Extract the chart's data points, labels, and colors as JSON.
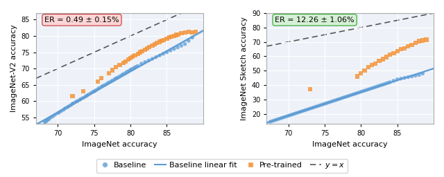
{
  "left_title": "ER = 0.49 ± 0.15%",
  "right_title": "ER = 12.26 ± 1.06%",
  "left_ylabel": "ImageNet-V2 accuracy",
  "right_ylabel": "ImageNet Sketch accuracy",
  "xlabel": "ImageNet accuracy",
  "left_xlim": [
    67,
    90
  ],
  "left_ylim": [
    53,
    87
  ],
  "right_xlim": [
    67,
    90
  ],
  "right_ylim": [
    13,
    90
  ],
  "left_xticks": [
    70,
    75,
    80,
    85
  ],
  "right_xticks": [
    70,
    75,
    80,
    85
  ],
  "left_yticks": [
    55,
    60,
    65,
    70,
    75,
    80,
    85
  ],
  "right_yticks": [
    20,
    30,
    40,
    50,
    60,
    70,
    80,
    90
  ],
  "baseline_color": "#5b9bd5",
  "pretrained_color": "#f4943a",
  "fit_color": "#5b9bd5",
  "yequx_color": "#555555",
  "left_box_color": "#fcd5d5",
  "right_box_color": "#d5f0d5",
  "left_box_edge": "#cc4444",
  "right_box_edge": "#44aa44",
  "bg_color": "#eef2f8",
  "left_baseline_x": [
    68.2,
    68.4,
    68.6,
    68.8,
    69.0,
    69.3,
    69.6,
    70.0,
    70.2,
    70.5,
    70.8,
    71.0,
    71.3,
    71.5,
    71.8,
    72.0,
    72.2,
    72.5,
    72.7,
    73.0,
    73.2,
    73.5,
    73.8,
    74.0,
    74.2,
    74.5,
    74.8,
    75.0,
    75.2,
    75.5,
    75.7,
    76.0,
    76.2,
    76.5,
    76.8,
    77.0,
    77.3,
    77.5,
    77.8,
    78.0,
    78.2,
    78.5,
    78.8,
    79.0,
    79.3,
    79.5,
    79.8,
    80.0,
    80.2,
    80.5,
    80.7,
    81.0,
    81.5,
    82.0,
    82.5,
    83.0,
    83.5,
    84.0,
    84.5,
    85.0,
    85.5,
    86.0,
    86.5,
    87.0,
    87.5,
    88.0,
    88.5
  ],
  "left_baseline_y": [
    53.5,
    53.8,
    54.2,
    54.5,
    55.0,
    55.3,
    55.8,
    56.3,
    56.6,
    57.0,
    57.4,
    57.8,
    58.1,
    58.4,
    58.8,
    59.2,
    59.4,
    59.8,
    60.0,
    60.4,
    60.7,
    61.0,
    61.4,
    61.7,
    62.0,
    62.4,
    62.8,
    63.0,
    63.3,
    63.7,
    64.0,
    64.4,
    64.7,
    65.0,
    65.4,
    65.7,
    66.0,
    66.3,
    66.7,
    67.0,
    67.2,
    67.6,
    68.0,
    68.3,
    68.6,
    69.0,
    69.3,
    69.6,
    69.9,
    70.2,
    70.5,
    70.8,
    71.5,
    72.0,
    72.5,
    73.0,
    73.5,
    74.0,
    74.5,
    75.0,
    75.5,
    76.0,
    76.5,
    77.0,
    77.5,
    78.5,
    79.5
  ],
  "left_pretrained_x": [
    72.0,
    73.5,
    75.5,
    76.0,
    77.0,
    77.5,
    78.0,
    78.5,
    79.0,
    79.3,
    79.7,
    80.0,
    80.3,
    80.6,
    81.0,
    81.3,
    81.6,
    82.0,
    82.3,
    82.6,
    83.0,
    83.3,
    83.6,
    84.0,
    84.3,
    84.6,
    85.0,
    85.3,
    85.6,
    86.0,
    86.3,
    86.6,
    87.0,
    87.5,
    88.0,
    88.5,
    89.0
  ],
  "left_pretrained_y": [
    61.5,
    63.0,
    66.0,
    67.0,
    68.5,
    69.5,
    70.5,
    71.0,
    71.8,
    72.2,
    72.8,
    73.2,
    73.6,
    74.0,
    74.5,
    75.0,
    75.4,
    75.8,
    76.2,
    76.6,
    77.0,
    77.4,
    77.8,
    78.2,
    78.5,
    78.8,
    79.2,
    79.5,
    79.8,
    80.0,
    80.3,
    80.5,
    80.8,
    81.0,
    81.2,
    81.0,
    81.3
  ],
  "right_baseline_x": [
    67.5,
    67.8,
    68.1,
    68.4,
    68.7,
    69.0,
    69.3,
    69.6,
    69.9,
    70.2,
    70.5,
    70.8,
    71.1,
    71.4,
    71.7,
    72.0,
    72.3,
    72.6,
    72.9,
    73.2,
    73.5,
    73.8,
    74.1,
    74.4,
    74.7,
    75.0,
    75.3,
    75.6,
    75.9,
    76.2,
    76.5,
    76.8,
    77.1,
    77.4,
    77.7,
    78.0,
    78.3,
    78.6,
    78.9,
    79.2,
    79.5,
    79.8,
    80.1,
    80.4,
    80.7,
    81.0,
    81.3,
    81.6,
    81.9,
    82.2,
    82.5,
    82.8,
    83.1,
    83.4,
    83.7,
    84.0,
    84.5,
    85.0,
    85.5,
    86.0,
    86.5,
    87.0,
    87.5,
    88.0,
    88.5
  ],
  "right_baseline_y": [
    14.5,
    15.0,
    15.5,
    16.0,
    16.5,
    17.0,
    17.5,
    18.0,
    18.5,
    19.0,
    19.5,
    20.0,
    20.5,
    21.0,
    21.5,
    22.0,
    22.5,
    23.0,
    23.5,
    24.0,
    24.5,
    25.0,
    25.5,
    26.0,
    26.5,
    27.0,
    27.5,
    28.0,
    28.5,
    29.0,
    29.5,
    30.0,
    30.5,
    31.0,
    31.5,
    32.0,
    32.5,
    33.0,
    33.5,
    34.0,
    34.5,
    35.0,
    35.5,
    36.0,
    36.5,
    37.0,
    37.5,
    38.0,
    38.5,
    39.0,
    39.5,
    40.0,
    40.5,
    41.0,
    41.5,
    42.0,
    43.0,
    44.0,
    44.5,
    45.0,
    45.5,
    46.0,
    46.5,
    47.0,
    48.0
  ],
  "right_pretrained_x": [
    73.0,
    79.5,
    80.0,
    80.5,
    81.0,
    81.5,
    82.0,
    82.5,
    83.0,
    83.5,
    84.0,
    84.5,
    85.0,
    85.5,
    86.0,
    86.5,
    87.0,
    87.5,
    88.0,
    88.5,
    89.0
  ],
  "right_pretrained_y": [
    37.0,
    46.0,
    48.0,
    50.0,
    52.5,
    54.0,
    55.0,
    57.0,
    58.0,
    59.5,
    61.0,
    62.0,
    63.5,
    65.0,
    65.5,
    67.0,
    68.0,
    69.5,
    70.5,
    71.0,
    71.5
  ]
}
